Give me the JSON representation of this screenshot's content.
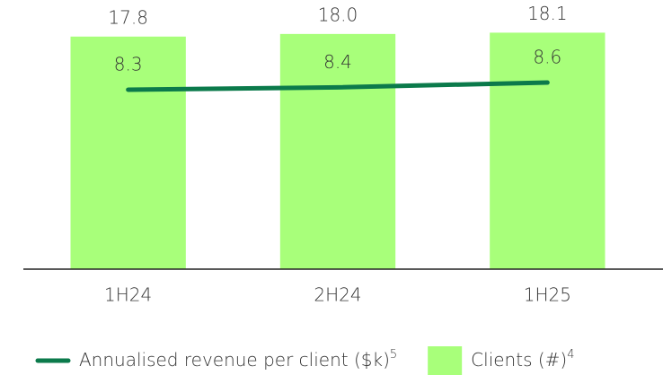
{
  "chart_data": {
    "type": "bar_line",
    "categories": [
      "1H24",
      "2H24",
      "1H25"
    ],
    "series": [
      {
        "name": "Clients (#)",
        "note_ref": "4",
        "type": "bar",
        "color": "#a8ff7a",
        "values": [
          17.8,
          18.0,
          18.1
        ],
        "value_labels": [
          "17.8",
          "18.0",
          "18.1"
        ]
      },
      {
        "name": "Annualised revenue per client ($k)",
        "note_ref": "5",
        "type": "line",
        "axis": "y2",
        "color": "#0b7a4b",
        "values": [
          8.3,
          8.4,
          8.6
        ]
      }
    ],
    "ylim": [
      0,
      20.6
    ],
    "y2lim": [
      0.8,
      12.05
    ],
    "legend": "bottom"
  }
}
